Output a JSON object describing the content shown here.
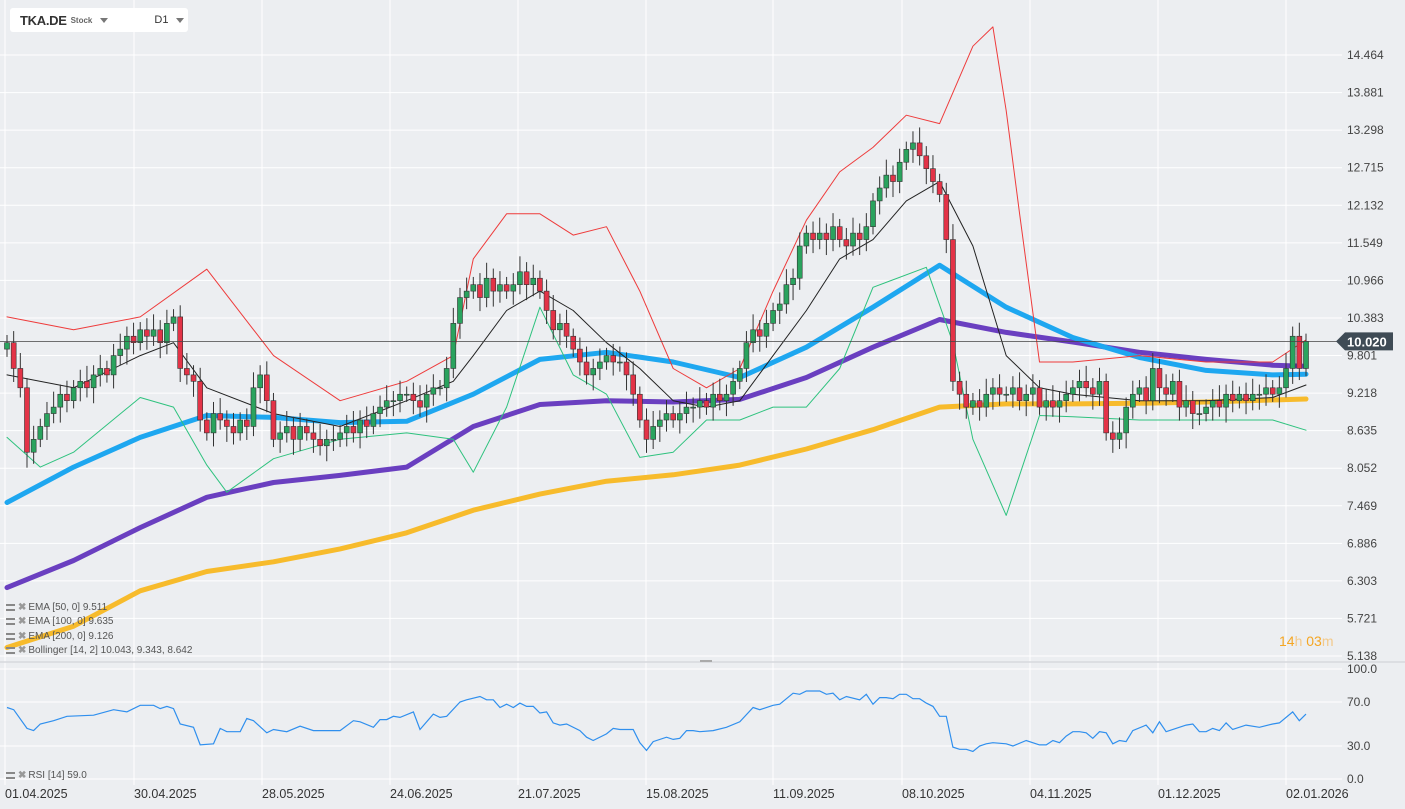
{
  "header": {
    "symbol": "TKA.DE",
    "type": "Stock",
    "timeframe": "D1"
  },
  "legend": [
    {
      "label": "EMA [50, 0] 9.511",
      "color": "#1ea7f0"
    },
    {
      "label": "EMA [100, 0] 9.635",
      "color": "#6a3fc0"
    },
    {
      "label": "EMA [200, 0] 9.126",
      "color": "#f7bb2c"
    },
    {
      "label": "Bollinger  [14, 2] 10.043,  9.343,  8.642",
      "color": "#e83a3a"
    }
  ],
  "rsi_legend": "RSI [14] 59.0",
  "timer": {
    "hours": "14",
    "h": "h",
    "minutes": "03",
    "m": "m"
  },
  "current_price": "10.020",
  "colors": {
    "up": "#2aa35e",
    "down": "#e33347",
    "ema50": "#1ea7f0",
    "ema100": "#6a3fc0",
    "ema200": "#f7bb2c",
    "bb_upper": "#ee3b3b",
    "bb_mid": "#222222",
    "bb_lower": "#2ec27e",
    "rsi": "#2f8fee",
    "price_tag": "#3f4b55"
  },
  "chart_data": {
    "type": "candlestick",
    "price_axis_ticks": [
      "14.464",
      "13.881",
      "13.298",
      "12.715",
      "12.132",
      "11.549",
      "10.966",
      "10.383",
      "9.801",
      "9.218",
      "8.635",
      "8.052",
      "7.469",
      "6.886",
      "6.303",
      "5.721",
      "5.138"
    ],
    "ylim": [
      5.138,
      14.464
    ],
    "date_ticks": [
      "01.04.2025",
      "30.04.2025",
      "28.05.2025",
      "24.06.2025",
      "21.07.2025",
      "15.08.2025",
      "11.09.2025",
      "08.10.2025",
      "04.11.2025",
      "01.12.2025",
      "02.01.2026"
    ],
    "closes": [
      10.0,
      9.6,
      9.3,
      8.3,
      8.5,
      8.7,
      8.9,
      9.0,
      9.2,
      9.1,
      9.3,
      9.4,
      9.3,
      9.5,
      9.6,
      9.5,
      9.8,
      9.9,
      10.1,
      10.0,
      10.2,
      10.1,
      10.2,
      10.0,
      10.3,
      10.4,
      9.6,
      9.5,
      9.4,
      8.8,
      8.6,
      8.9,
      8.8,
      8.7,
      8.6,
      8.8,
      8.7,
      9.3,
      9.5,
      9.1,
      8.5,
      8.6,
      8.7,
      8.5,
      8.7,
      8.6,
      8.5,
      8.4,
      8.5,
      8.5,
      8.6,
      8.7,
      8.6,
      8.8,
      8.7,
      8.9,
      9.0,
      9.1,
      9.1,
      9.2,
      9.2,
      9.1,
      9.0,
      9.2,
      9.3,
      9.3,
      9.6,
      10.3,
      10.7,
      10.8,
      10.9,
      10.7,
      11.0,
      10.8,
      10.9,
      10.8,
      10.9,
      11.1,
      10.9,
      11.0,
      10.8,
      10.5,
      10.2,
      10.3,
      10.1,
      9.9,
      9.7,
      9.5,
      9.6,
      9.7,
      9.8,
      9.7,
      9.7,
      9.5,
      9.2,
      8.8,
      8.5,
      8.7,
      8.8,
      8.9,
      8.8,
      8.9,
      9.0,
      9.0,
      9.1,
      9.0,
      9.2,
      9.1,
      9.2,
      9.4,
      9.6,
      10.0,
      10.2,
      10.1,
      10.3,
      10.5,
      10.6,
      10.9,
      11.0,
      11.5,
      11.7,
      11.6,
      11.7,
      11.6,
      11.8,
      11.6,
      11.5,
      11.7,
      11.6,
      11.8,
      12.2,
      12.4,
      12.6,
      12.5,
      12.8,
      13.0,
      13.1,
      12.9,
      12.7,
      12.5,
      12.3,
      11.6,
      9.4,
      9.2,
      9.0,
      9.1,
      9.0,
      9.2,
      9.3,
      9.2,
      9.2,
      9.3,
      9.1,
      9.2,
      9.3,
      9.0,
      9.1,
      9.0,
      9.1,
      9.2,
      9.3,
      9.4,
      9.3,
      9.2,
      9.4,
      8.6,
      8.5,
      8.6,
      9.0,
      9.2,
      9.3,
      9.1,
      9.6,
      9.3,
      9.2,
      9.4,
      9.0,
      9.1,
      8.9,
      8.9,
      9.0,
      9.1,
      9.0,
      9.2,
      9.1,
      9.2,
      9.1,
      9.2,
      9.2,
      9.3,
      9.2,
      9.3,
      9.6,
      10.1,
      9.6,
      10.02
    ],
    "last_price": 10.02,
    "ema50": [
      [
        0,
        7.52
      ],
      [
        10,
        8.07
      ],
      [
        20,
        8.53
      ],
      [
        30,
        8.87
      ],
      [
        40,
        8.84
      ],
      [
        50,
        8.76
      ],
      [
        60,
        8.78
      ],
      [
        70,
        9.2
      ],
      [
        80,
        9.74
      ],
      [
        90,
        9.85
      ],
      [
        100,
        9.7
      ],
      [
        110,
        9.46
      ],
      [
        120,
        9.93
      ],
      [
        130,
        10.55
      ],
      [
        140,
        11.2
      ],
      [
        150,
        10.55
      ],
      [
        160,
        10.08
      ],
      [
        170,
        9.77
      ],
      [
        180,
        9.57
      ],
      [
        190,
        9.5
      ],
      [
        195,
        9.511
      ]
    ],
    "ema100": [
      [
        0,
        6.2
      ],
      [
        10,
        6.62
      ],
      [
        20,
        7.13
      ],
      [
        30,
        7.6
      ],
      [
        40,
        7.83
      ],
      [
        50,
        7.94
      ],
      [
        60,
        8.07
      ],
      [
        70,
        8.7
      ],
      [
        80,
        9.04
      ],
      [
        90,
        9.1
      ],
      [
        100,
        9.08
      ],
      [
        110,
        9.12
      ],
      [
        120,
        9.46
      ],
      [
        130,
        9.93
      ],
      [
        140,
        10.36
      ],
      [
        150,
        10.16
      ],
      [
        160,
        10.01
      ],
      [
        170,
        9.85
      ],
      [
        180,
        9.74
      ],
      [
        190,
        9.65
      ],
      [
        195,
        9.635
      ]
    ],
    "ema200": [
      [
        0,
        5.27
      ],
      [
        10,
        5.6
      ],
      [
        20,
        6.15
      ],
      [
        30,
        6.45
      ],
      [
        40,
        6.6
      ],
      [
        50,
        6.8
      ],
      [
        60,
        7.05
      ],
      [
        70,
        7.4
      ],
      [
        80,
        7.65
      ],
      [
        90,
        7.85
      ],
      [
        100,
        7.95
      ],
      [
        110,
        8.1
      ],
      [
        120,
        8.35
      ],
      [
        130,
        8.65
      ],
      [
        140,
        9.0
      ],
      [
        150,
        9.05
      ],
      [
        160,
        9.05
      ],
      [
        170,
        9.06
      ],
      [
        180,
        9.08
      ],
      [
        190,
        9.11
      ],
      [
        195,
        9.126
      ]
    ],
    "bb_upper": [
      [
        0,
        10.4
      ],
      [
        10,
        10.2
      ],
      [
        20,
        10.4
      ],
      [
        30,
        11.14
      ],
      [
        40,
        9.8
      ],
      [
        50,
        9.1
      ],
      [
        60,
        9.4
      ],
      [
        67,
        9.8
      ],
      [
        70,
        11.3
      ],
      [
        75,
        12.0
      ],
      [
        80,
        12.0
      ],
      [
        85,
        11.67
      ],
      [
        90,
        11.8
      ],
      [
        95,
        10.8
      ],
      [
        100,
        9.6
      ],
      [
        105,
        9.3
      ],
      [
        110,
        9.6
      ],
      [
        115,
        10.8
      ],
      [
        120,
        11.9
      ],
      [
        125,
        12.65
      ],
      [
        130,
        13.03
      ],
      [
        135,
        13.53
      ],
      [
        140,
        13.4
      ],
      [
        145,
        14.6
      ],
      [
        148,
        14.9
      ],
      [
        150,
        13.6
      ],
      [
        152,
        12.0
      ],
      [
        155,
        9.7
      ],
      [
        160,
        9.7
      ],
      [
        170,
        9.8
      ],
      [
        180,
        9.7
      ],
      [
        190,
        9.7
      ],
      [
        195,
        10.043
      ]
    ],
    "bb_mid": [
      [
        0,
        9.5
      ],
      [
        10,
        9.3
      ],
      [
        20,
        9.8
      ],
      [
        25,
        10.0
      ],
      [
        30,
        9.3
      ],
      [
        40,
        8.9
      ],
      [
        50,
        8.7
      ],
      [
        60,
        9.1
      ],
      [
        67,
        9.4
      ],
      [
        70,
        9.8
      ],
      [
        75,
        10.5
      ],
      [
        80,
        10.8
      ],
      [
        85,
        10.5
      ],
      [
        90,
        10.0
      ],
      [
        95,
        9.6
      ],
      [
        100,
        9.1
      ],
      [
        105,
        9.0
      ],
      [
        110,
        9.1
      ],
      [
        115,
        9.8
      ],
      [
        120,
        10.5
      ],
      [
        125,
        11.3
      ],
      [
        130,
        11.6
      ],
      [
        135,
        12.2
      ],
      [
        140,
        12.5
      ],
      [
        145,
        11.5
      ],
      [
        150,
        9.8
      ],
      [
        155,
        9.3
      ],
      [
        160,
        9.2
      ],
      [
        170,
        9.1
      ],
      [
        180,
        9.1
      ],
      [
        190,
        9.15
      ],
      [
        195,
        9.343
      ]
    ],
    "bb_lower": [
      [
        0,
        8.53
      ],
      [
        5,
        8.07
      ],
      [
        10,
        8.3
      ],
      [
        20,
        9.15
      ],
      [
        25,
        9.0
      ],
      [
        30,
        8.1
      ],
      [
        33,
        7.68
      ],
      [
        40,
        8.2
      ],
      [
        50,
        8.5
      ],
      [
        60,
        8.6
      ],
      [
        67,
        8.5
      ],
      [
        70,
        7.99
      ],
      [
        75,
        9.0
      ],
      [
        80,
        10.55
      ],
      [
        85,
        9.5
      ],
      [
        90,
        9.2
      ],
      [
        95,
        8.22
      ],
      [
        100,
        8.3
      ],
      [
        105,
        8.8
      ],
      [
        110,
        8.8
      ],
      [
        115,
        9.0
      ],
      [
        120,
        9.0
      ],
      [
        125,
        9.6
      ],
      [
        130,
        10.86
      ],
      [
        138,
        11.17
      ],
      [
        142,
        10.0
      ],
      [
        145,
        8.5
      ],
      [
        150,
        7.32
      ],
      [
        155,
        8.87
      ],
      [
        160,
        8.85
      ],
      [
        170,
        8.8
      ],
      [
        180,
        8.8
      ],
      [
        190,
        8.8
      ],
      [
        195,
        8.642
      ]
    ],
    "rsi": {
      "ticks": [
        "100.0",
        "70.0",
        "30.0",
        "0.0"
      ],
      "ylim": [
        0,
        100
      ],
      "values": [
        [
          0,
          65
        ],
        [
          1,
          63
        ],
        [
          3,
          46
        ],
        [
          4,
          44
        ],
        [
          5,
          50
        ],
        [
          7,
          53
        ],
        [
          9,
          57
        ],
        [
          13,
          58
        ],
        [
          16,
          63
        ],
        [
          18,
          61
        ],
        [
          20,
          67
        ],
        [
          22,
          67
        ],
        [
          23,
          64
        ],
        [
          24,
          66
        ],
        [
          25,
          64
        ],
        [
          26,
          50
        ],
        [
          28,
          47
        ],
        [
          29,
          31
        ],
        [
          31,
          32
        ],
        [
          32,
          46
        ],
        [
          33,
          43
        ],
        [
          35,
          43
        ],
        [
          36,
          55
        ],
        [
          37,
          53
        ],
        [
          39,
          42
        ],
        [
          40,
          45
        ],
        [
          42,
          43
        ],
        [
          44,
          48
        ],
        [
          46,
          44
        ],
        [
          50,
          44
        ],
        [
          52,
          53
        ],
        [
          53,
          52
        ],
        [
          55,
          47
        ],
        [
          56,
          54
        ],
        [
          57,
          54
        ],
        [
          58,
          57
        ],
        [
          59,
          56
        ],
        [
          61,
          61
        ],
        [
          62,
          45
        ],
        [
          64,
          59
        ],
        [
          65,
          56
        ],
        [
          66,
          57
        ],
        [
          68,
          70
        ],
        [
          69,
          72
        ],
        [
          71,
          75
        ],
        [
          72,
          72
        ],
        [
          73,
          72
        ],
        [
          74,
          65
        ],
        [
          75,
          68
        ],
        [
          76,
          65
        ],
        [
          77,
          69
        ],
        [
          78,
          66
        ],
        [
          79,
          66
        ],
        [
          80,
          60
        ],
        [
          81,
          61
        ],
        [
          82,
          51
        ],
        [
          83,
          49
        ],
        [
          84,
          50
        ],
        [
          86,
          44
        ],
        [
          87,
          38
        ],
        [
          88,
          35
        ],
        [
          90,
          41
        ],
        [
          91,
          46
        ],
        [
          92,
          45
        ],
        [
          94,
          45
        ],
        [
          95,
          33
        ],
        [
          96,
          26
        ],
        [
          97,
          34
        ],
        [
          99,
          38
        ],
        [
          100,
          36
        ],
        [
          101,
          37
        ],
        [
          102,
          44
        ],
        [
          103,
          44
        ],
        [
          104,
          43
        ],
        [
          106,
          44
        ],
        [
          108,
          47
        ],
        [
          110,
          52
        ],
        [
          112,
          65
        ],
        [
          113,
          63
        ],
        [
          115,
          67
        ],
        [
          116,
          68
        ],
        [
          118,
          78
        ],
        [
          119,
          77
        ],
        [
          120,
          80
        ],
        [
          122,
          80
        ],
        [
          123,
          77
        ],
        [
          124,
          78
        ],
        [
          125,
          72
        ],
        [
          126,
          75
        ],
        [
          128,
          72
        ],
        [
          129,
          77
        ],
        [
          130,
          68
        ],
        [
          131,
          74
        ],
        [
          132,
          74
        ],
        [
          133,
          73
        ],
        [
          134,
          77
        ],
        [
          135,
          77
        ],
        [
          136,
          73
        ],
        [
          137,
          73
        ],
        [
          138,
          69
        ],
        [
          139,
          66
        ],
        [
          140,
          57
        ],
        [
          141,
          57
        ],
        [
          142,
          29
        ],
        [
          143,
          27
        ],
        [
          144,
          27
        ],
        [
          145,
          25
        ],
        [
          146,
          30
        ],
        [
          147,
          32
        ],
        [
          148,
          33
        ],
        [
          150,
          32
        ],
        [
          151,
          30
        ],
        [
          153,
          35
        ],
        [
          155,
          31
        ],
        [
          156,
          31
        ],
        [
          157,
          35
        ],
        [
          158,
          33
        ],
        [
          159,
          39
        ],
        [
          160,
          43
        ],
        [
          161,
          43
        ],
        [
          162,
          42
        ],
        [
          163,
          37
        ],
        [
          164,
          43
        ],
        [
          165,
          42
        ],
        [
          166,
          32
        ],
        [
          167,
          35
        ],
        [
          168,
          34
        ],
        [
          169,
          44
        ],
        [
          171,
          49
        ],
        [
          172,
          42
        ],
        [
          173,
          52
        ],
        [
          174,
          43
        ],
        [
          177,
          49
        ],
        [
          178,
          50
        ],
        [
          179,
          43
        ],
        [
          180,
          43
        ],
        [
          181,
          46
        ],
        [
          182,
          44
        ],
        [
          183,
          51
        ],
        [
          184,
          45
        ],
        [
          186,
          49
        ],
        [
          188,
          47
        ],
        [
          190,
          50
        ],
        [
          191,
          51
        ],
        [
          193,
          61
        ],
        [
          194,
          53
        ],
        [
          195,
          59
        ]
      ]
    }
  }
}
